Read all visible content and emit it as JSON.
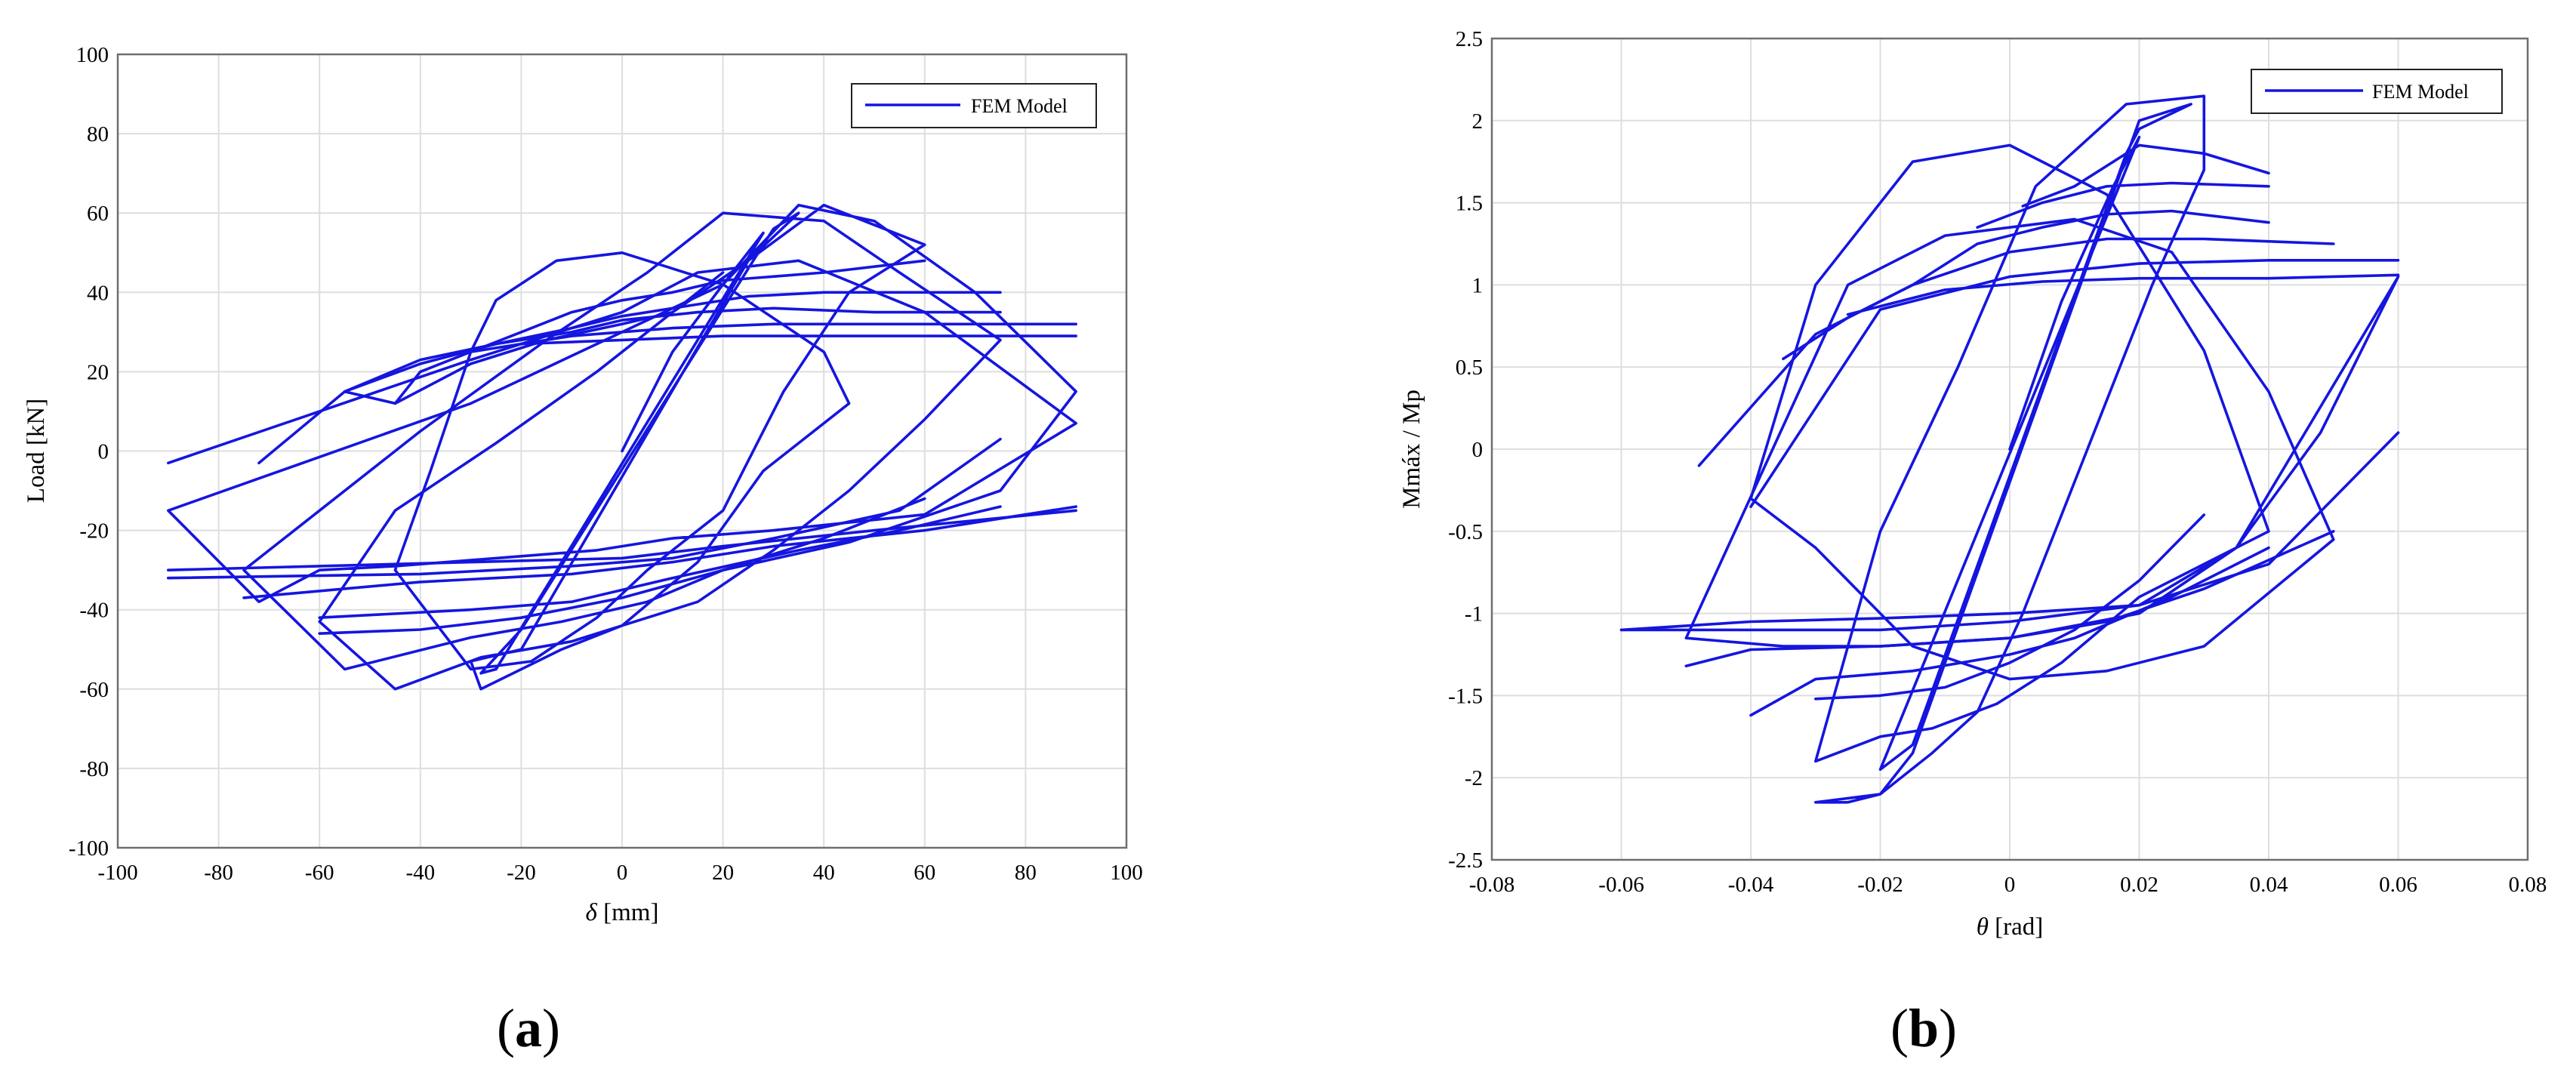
{
  "colors": {
    "series": "#1515e0",
    "grid": "#dedede",
    "frame": "#6f6f6f"
  },
  "chart_data": [
    {
      "panel_label": "a",
      "type": "line",
      "xlabel_italic": "δ",
      "xlabel_rest": " [mm]",
      "ylabel": "Load [kN]",
      "xlim": [
        -100,
        100
      ],
      "ylim": [
        -100,
        100
      ],
      "xticks": [
        -100,
        -80,
        -60,
        -40,
        -20,
        0,
        20,
        40,
        60,
        80,
        100
      ],
      "yticks": [
        -100,
        -80,
        -60,
        -40,
        -20,
        0,
        20,
        40,
        60,
        80,
        100
      ],
      "grid": true,
      "legend_position": "top-right",
      "series": [
        {
          "name": "FEM Model",
          "x": [
            0,
            10,
            20,
            28,
            -25,
            -28,
            -20,
            28,
            30,
            35,
            25,
            -20,
            -30,
            -28,
            -12,
            0,
            15,
            28,
            45,
            40,
            20,
            0,
            -13,
            -25,
            -30,
            -38,
            -45,
            -30,
            -18,
            -5,
            5,
            20,
            28,
            32,
            45,
            60,
            40,
            25,
            10,
            -5,
            -25,
            -45,
            -60,
            -45,
            -28,
            -10,
            0,
            15,
            30,
            45,
            60,
            75,
            55,
            40,
            20,
            5,
            -15,
            -40,
            -75,
            -55,
            -30,
            -12,
            5,
            20,
            45,
            75,
            90,
            70,
            50,
            35,
            20,
            0,
            -30,
            -90,
            -72,
            -60,
            -45,
            -25,
            -5,
            10,
            30,
            60,
            90,
            60,
            35,
            15,
            0,
            -30,
            -90
          ],
          "y": [
            0,
            25,
            42,
            55,
            -55,
            -56,
            -45,
            52,
            56,
            60,
            48,
            -50,
            -53,
            -60,
            -50,
            -44,
            -28,
            -5,
            12,
            25,
            42,
            50,
            48,
            38,
            25,
            -5,
            -30,
            -55,
            -53,
            -42,
            -30,
            -15,
            5,
            15,
            40,
            52,
            62,
            48,
            35,
            20,
            2,
            -15,
            -43,
            -60,
            -52,
            -48,
            -44,
            -38,
            -25,
            -10,
            8,
            28,
            45,
            58,
            60,
            45,
            28,
            5,
            -30,
            -55,
            -47,
            -43,
            -38,
            -30,
            -23,
            -10,
            15,
            40,
            58,
            62,
            42,
            30,
            12,
            -15,
            -38,
            -30,
            -29,
            -27,
            -25,
            -22,
            -20,
            -16,
            7,
            35,
            48,
            45,
            35,
            23,
            -3
          ],
          "loops_upper": [
            {
              "x": [
                -45,
                -40,
                -30,
                -20,
                -10,
                0,
                10,
                20,
                30,
                40,
                60
              ],
              "y": [
                12,
                20,
                25,
                30,
                35,
                38,
                40,
                43,
                44,
                45,
                48
              ]
            },
            {
              "x": [
                -55,
                -40,
                -25,
                -10,
                0,
                15,
                25,
                40,
                60,
                75
              ],
              "y": [
                15,
                22,
                27,
                31,
                34,
                37,
                39,
                40,
                40,
                40
              ]
            },
            {
              "x": [
                -72,
                -55,
                -40,
                -25,
                -10,
                0,
                15,
                30,
                50,
                75
              ],
              "y": [
                -3,
                15,
                23,
                27,
                30,
                33,
                35,
                36,
                35,
                35
              ]
            },
            {
              "x": [
                -30,
                -10,
                10,
                30,
                50,
                70,
                90
              ],
              "y": [
                25,
                29,
                31,
                32,
                32,
                32,
                32
              ]
            },
            {
              "x": [
                -20,
                0,
                20,
                40,
                60,
                80,
                90
              ],
              "y": [
                27,
                28,
                29,
                29,
                29,
                29,
                29
              ]
            },
            {
              "x": [
                -55,
                -45,
                -30,
                -15,
                0,
                10,
                20
              ],
              "y": [
                15,
                12,
                22,
                28,
                32,
                35,
                45
              ]
            }
          ],
          "loops_lower": [
            {
              "x": [
                60,
                40,
                20,
                0,
                -20,
                -40,
                -60
              ],
              "y": [
                -12,
                -22,
                -30,
                -37,
                -42,
                -45,
                -46
              ]
            },
            {
              "x": [
                75,
                55,
                35,
                10,
                -10,
                -30,
                -60
              ],
              "y": [
                -14,
                -20,
                -25,
                -32,
                -38,
                -40,
                -42
              ]
            },
            {
              "x": [
                90,
                60,
                30,
                10,
                -10,
                -40,
                -75
              ],
              "y": [
                -14,
                -20,
                -24,
                -28,
                -31,
                -33,
                -37
              ]
            },
            {
              "x": [
                90,
                50,
                20,
                0,
                -30,
                -60,
                -90
              ],
              "y": [
                -15,
                -20,
                -24,
                -27,
                -28,
                -29,
                -30
              ]
            },
            {
              "x": [
                75,
                55,
                30,
                10,
                -10,
                -40,
                -90
              ],
              "y": [
                3,
                -15,
                -22,
                -27,
                -29,
                -31,
                -32
              ]
            }
          ]
        }
      ]
    },
    {
      "panel_label": "b",
      "type": "line",
      "xlabel_italic": "θ",
      "xlabel_rest": " [rad]",
      "ylabel": "Mmáx / Mp",
      "xlim": [
        -0.08,
        0.08
      ],
      "ylim": [
        -2.5,
        2.5
      ],
      "xticks": [
        -0.08,
        -0.06,
        -0.04,
        -0.02,
        0,
        0.02,
        0.04,
        0.06,
        0.08
      ],
      "yticks": [
        -2.5,
        -2,
        -1.5,
        -1,
        -0.5,
        0,
        0.5,
        1,
        1.5,
        2,
        2.5
      ],
      "grid": true,
      "legend_position": "top-right",
      "series": [
        {
          "name": "FEM Model",
          "x": [
            0,
            0.008,
            0.016,
            0.02,
            -0.02,
            -0.02,
            -0.015,
            0.018,
            0.02,
            0.028,
            0.02,
            -0.015,
            -0.02,
            -0.03,
            -0.025,
            -0.02,
            -0.012,
            -0.005,
            0.002,
            0.012,
            0.022,
            0.03,
            0.03,
            0.018,
            0.004,
            -0.008,
            -0.02,
            -0.03,
            -0.02,
            -0.012,
            -0.002,
            0.008,
            0.02,
            0.04,
            0.03,
            0.015,
            0.0,
            -0.015,
            -0.03,
            -0.04,
            -0.03,
            -0.015,
            0.0,
            0.015,
            0.03,
            0.05,
            0.04,
            0.025,
            0.01,
            -0.01,
            -0.025,
            -0.05,
            -0.035,
            -0.02,
            0.0,
            0.02,
            0.035,
            0.06,
            0.048,
            0.035,
            0.02,
            0.0,
            -0.02,
            -0.04,
            -0.06
          ],
          "y": [
            0,
            0.9,
            1.6,
            1.9,
            -1.95,
            -1.95,
            -1.8,
            1.8,
            1.95,
            2.1,
            2.0,
            -1.85,
            -2.1,
            -2.15,
            -2.15,
            -2.1,
            -1.85,
            -1.6,
            -1.0,
            0.0,
            1.0,
            1.7,
            2.15,
            2.1,
            1.6,
            0.5,
            -0.5,
            -1.9,
            -1.75,
            -1.7,
            -1.55,
            -1.3,
            -0.9,
            -0.5,
            0.6,
            1.55,
            1.85,
            1.75,
            1.0,
            -0.3,
            -0.6,
            -1.2,
            -1.4,
            -1.35,
            -1.2,
            -0.55,
            0.35,
            1.2,
            1.4,
            1.3,
            1.0,
            -1.15,
            -1.2,
            -1.2,
            -1.15,
            -1.0,
            -0.6,
            1.05,
            0.1,
            -0.6,
            -0.95,
            -1.0,
            -1.03,
            -1.05,
            -1.1
          ],
          "loops_upper": [
            {
              "x": [
                -0.035,
                -0.025,
                -0.015,
                -0.005,
                0.005,
                0.015,
                0.025,
                0.04
              ],
              "y": [
                0.55,
                0.8,
                1.0,
                1.25,
                1.35,
                1.43,
                1.45,
                1.38
              ]
            },
            {
              "x": [
                -0.048,
                -0.03,
                -0.015,
                0.0,
                0.015,
                0.03,
                0.05
              ],
              "y": [
                -0.1,
                0.7,
                1.0,
                1.2,
                1.28,
                1.28,
                1.25
              ]
            },
            {
              "x": [
                -0.04,
                -0.02,
                0.0,
                0.02,
                0.04,
                0.06
              ],
              "y": [
                -0.35,
                0.85,
                1.05,
                1.13,
                1.15,
                1.15
              ]
            },
            {
              "x": [
                -0.025,
                -0.01,
                0.005,
                0.02,
                0.04,
                0.06
              ],
              "y": [
                0.82,
                0.97,
                1.02,
                1.04,
                1.04,
                1.06
              ]
            },
            {
              "x": [
                -0.005,
                0.005,
                0.015,
                0.025,
                0.04
              ],
              "y": [
                1.35,
                1.5,
                1.6,
                1.62,
                1.6
              ]
            },
            {
              "x": [
                0.002,
                0.01,
                0.02,
                0.03,
                0.04
              ],
              "y": [
                1.48,
                1.6,
                1.85,
                1.8,
                1.68
              ]
            }
          ],
          "loops_lower": [
            {
              "x": [
                0.03,
                0.02,
                0.01,
                0.0,
                -0.01,
                -0.02,
                -0.03
              ],
              "y": [
                -0.4,
                -0.8,
                -1.1,
                -1.3,
                -1.45,
                -1.5,
                -1.52
              ]
            },
            {
              "x": [
                0.04,
                0.025,
                0.01,
                0.0,
                -0.015,
                -0.03,
                -0.04
              ],
              "y": [
                -0.6,
                -0.9,
                -1.15,
                -1.25,
                -1.35,
                -1.4,
                -1.62
              ]
            },
            {
              "x": [
                0.05,
                0.03,
                0.015,
                0.0,
                -0.02,
                -0.04,
                -0.05
              ],
              "y": [
                -0.5,
                -0.85,
                -1.05,
                -1.15,
                -1.2,
                -1.22,
                -1.32
              ]
            },
            {
              "x": [
                0.06,
                0.04,
                0.02,
                0.0,
                -0.02,
                -0.04,
                -0.06
              ],
              "y": [
                0.1,
                -0.7,
                -0.95,
                -1.05,
                -1.1,
                -1.1,
                -1.1
              ]
            }
          ]
        }
      ]
    }
  ]
}
